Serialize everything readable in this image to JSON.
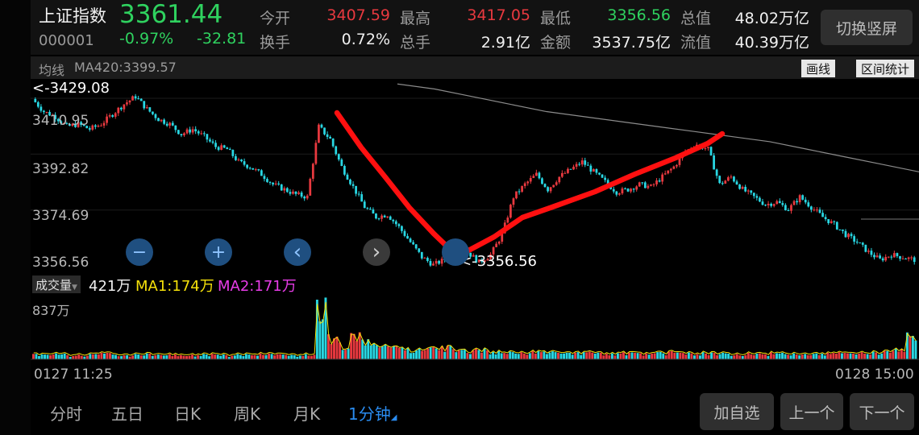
{
  "stock": {
    "name": "上证指数",
    "code": "000001",
    "price": "3361.44",
    "change_pct": "-0.97%",
    "change": "-32.81"
  },
  "stats": {
    "open_label": "今开",
    "open": "3407.59",
    "high_label": "最高",
    "high": "3417.05",
    "low_label": "最低",
    "low": "3356.56",
    "total_value_label": "总值",
    "total_value": "48.02万亿",
    "turnover_label": "换手",
    "turnover": "0.72%",
    "total_volume_label": "总手",
    "total_volume": "2.91亿",
    "amount_label": "金额",
    "amount": "3537.75亿",
    "float_value_label": "流值",
    "float_value": "40.39万亿"
  },
  "switch_button": "切换竖屏",
  "ma_bar": {
    "label": "均线",
    "ma": "MA420:3399.57",
    "draw_button": "画线",
    "range_button": "区间统计"
  },
  "price_axis": [
    "3410.95",
    "3392.82",
    "3374.69",
    "3356.56"
  ],
  "annotations": {
    "high_marker": "<-3429.08",
    "low_marker": "<-3356.56"
  },
  "controls": {
    "zoom_out": "−",
    "zoom_in": "+",
    "prev": "‹",
    "next": "›"
  },
  "volume_bar": {
    "label": "成交量",
    "current": "421万",
    "ma1": "MA1:174万",
    "ma2": "MA2:171万",
    "max": "837万"
  },
  "time_axis": {
    "start": "0127 11:25",
    "end": "0128 15:00"
  },
  "tabs": [
    "分时",
    "五日",
    "日K",
    "周K",
    "月K",
    "1分钟"
  ],
  "active_tab_index": 5,
  "bottom_buttons": {
    "watchlist": "加自选",
    "prev": "上一个",
    "next": "下一个"
  },
  "colors": {
    "up": "#e8393f",
    "down": "#28d7e3",
    "ma_line": "#8c8c8c",
    "ma1": "#f5e10a",
    "ma2": "#e83ce8",
    "annotation": "#ff1010",
    "active_tab": "#2a8cf0"
  },
  "chart_data": {
    "type": "candlestick",
    "ylim": [
      3356.56,
      3429.08
    ],
    "price_path": [
      3423,
      3418,
      3416,
      3412,
      3413,
      3411,
      3413,
      3417,
      3421,
      3424,
      3419,
      3415,
      3413,
      3409,
      3411,
      3408,
      3404,
      3403,
      3398,
      3396,
      3393,
      3389,
      3387,
      3385,
      3384,
      3412,
      3407,
      3396,
      3388,
      3380,
      3376,
      3377,
      3372,
      3366,
      3360,
      3357,
      3359,
      3364,
      3362,
      3358,
      3361,
      3369,
      3384,
      3389,
      3393,
      3387,
      3392,
      3395,
      3398,
      3394,
      3390,
      3386,
      3387,
      3389,
      3388,
      3392,
      3396,
      3402,
      3405,
      3403,
      3389,
      3392,
      3387,
      3384,
      3381,
      3382,
      3379,
      3384,
      3380,
      3376,
      3373,
      3369,
      3366,
      3362,
      3359,
      3361,
      3360,
      3359
    ],
    "ma420": [
      3429,
      3427,
      3424,
      3421,
      3418,
      3416,
      3414,
      3412,
      3410,
      3408,
      3406,
      3403,
      3400,
      3397,
      3394
    ],
    "volume": [
      9,
      8,
      10,
      7,
      8,
      9,
      11,
      8,
      7,
      9,
      10,
      8,
      9,
      7,
      8,
      9,
      8,
      7,
      9,
      8,
      10,
      9,
      8,
      7,
      9,
      100,
      42,
      28,
      44,
      33,
      27,
      25,
      22,
      19,
      18,
      20,
      22,
      17,
      16,
      18,
      15,
      14,
      13,
      12,
      14,
      13,
      12,
      11,
      12,
      13,
      11,
      10,
      12,
      11,
      10,
      12,
      13,
      11,
      10,
      12,
      11,
      10,
      9,
      11,
      10,
      12,
      11,
      10,
      9,
      10,
      11,
      12,
      10,
      12,
      13,
      14,
      18,
      45
    ]
  }
}
